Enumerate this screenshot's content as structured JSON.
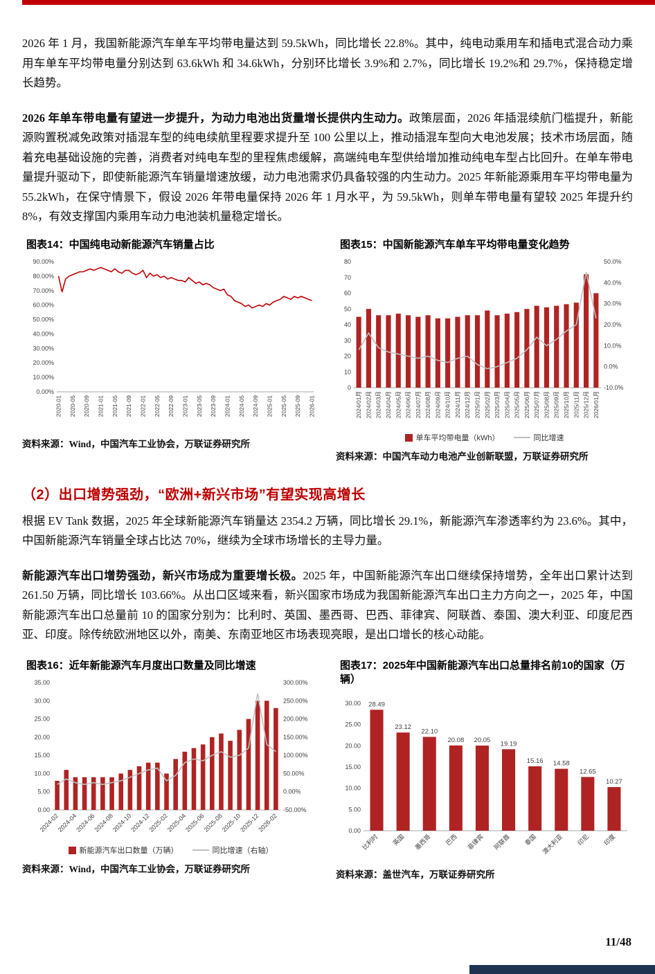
{
  "page": {
    "number": "11/48"
  },
  "colors": {
    "accent_red": "#c00000",
    "bar_red": "#b02323",
    "line_red": "#c00000",
    "line_gray": "#bfbfbf",
    "footer_navy": "#1d3350"
  },
  "paragraphs": {
    "p1": "2026 年 1 月，我国新能源汽车单车平均带电量达到 59.5kWh，同比增长 22.8%。其中，纯电动乘用车和插电式混合动力乘用车单车平均带电量分别达到 63.6kWh 和 34.6kWh，分别环比增长 3.9%和 2.7%，同比增长 19.2%和 29.7%，保持稳定增长趋势。",
    "p2_bold": "2026 年单车带电量有望进一步提升，为动力电池出货量增长提供内生动力。",
    "p2_rest": "政策层面，2026 年插混续航门槛提升，新能源购置税减免政策对插混车型的纯电续航里程要求提升至 100 公里以上，推动插混车型向大电池发展；技术市场层面，随着充电基础设施的完善，消费者对纯电车型的里程焦虑缓解，高端纯电车型供给增加推动纯电车型占比回升。在单车带电量提升驱动下，即使新能源汽车销量增速放缓，动力电池需求仍具备较强的内生动力。2025 年新能源乘用车平均带电量为 55.2kWh，在保守情景下，假设 2026 年带电量保持 2026 年 1 月水平，为 59.5kWh，则单车带电量有望较 2025 年提升约 8%，有效支撑国内乘用车动力电池装机量稳定增长。",
    "section2_heading": "（2）出口增势强劲，“欧洲+新兴市场”有望实现高增长",
    "p3": "根据 EV Tank 数据，2025 年全球新能源汽车销量达 2354.2 万辆，同比增长 29.1%，新能源汽车渗透率约为 23.6%。其中，中国新能源汽车销量全球占比达 70%，继续为全球市场增长的主导力量。",
    "p4_bold": "新能源汽车出口增势强劲，新兴市场成为重要增长极。",
    "p4_rest": "2025 年，中国新能源汽车出口继续保持增势，全年出口累计达到 261.50 万辆，同比增长 103.66%。从出口区域来看，新兴国家市场成为我国新能源汽车出口主力方向之一，2025 年，中国新能源汽车出口总量前 10 的国家分别为：比利时、英国、墨西哥、巴西、菲律宾、阿联酋、泰国、澳大利亚、印度尼西亚、印度。除传统欧洲地区以外，南美、东南亚地区市场表现亮眼，是出口增长的核心动能。"
  },
  "figures": {
    "fig14": {
      "title": "图表14：中国纯电动新能源汽车销量占比",
      "source": "资料来源：Wind，中国汽车工业协会，万联证券研究所"
    },
    "fig15": {
      "title": "图表15：中国新能源汽车单车平均带电量变化趋势",
      "source": "资料来源：中国汽车动力电池产业创新联盟，万联证券研究所"
    },
    "fig16": {
      "title": "图表16：近年新能源汽车月度出口数量及同比增速",
      "source": "资料来源：Wind，中国汽车工业协会，万联证券研究所"
    },
    "fig17": {
      "title": "图表17：2025年中国新能源汽车出口总量排名前10的国家（万辆）",
      "source": "资料来源：盖世汽车，万联证券研究所"
    }
  },
  "chart_data": [
    {
      "id": "fig14",
      "type": "line",
      "title": "中国纯电动新能源汽车销量占比",
      "n_points": 73,
      "tick_every": 4,
      "tick_labels": [
        "2020-01",
        "2020-05",
        "2020-09",
        "2021-01",
        "2021-05",
        "2021-09",
        "2022-01",
        "2022-05",
        "2022-09",
        "2023-01",
        "2023-05",
        "2023-09",
        "2024-01",
        "2024-05",
        "2024-09",
        "2025-01",
        "2025-05",
        "2025-09",
        "2026-01"
      ],
      "values": [
        80,
        69,
        78,
        80,
        81,
        82,
        83,
        83,
        84,
        85,
        84,
        85,
        86,
        85,
        84,
        83,
        85,
        83,
        82,
        84,
        84,
        82,
        81,
        82,
        84,
        79,
        82,
        80,
        81,
        79,
        80,
        78,
        79,
        78,
        77,
        77,
        76,
        79,
        77,
        75,
        76,
        74,
        75,
        74,
        72,
        71,
        70,
        71,
        67,
        66,
        63,
        62,
        61,
        59,
        60,
        58,
        59,
        60,
        59,
        61,
        60,
        62,
        63,
        64,
        66,
        65,
        64,
        66,
        65,
        66,
        65,
        64,
        63
      ],
      "ylim": [
        0,
        90
      ],
      "yticks": [
        "0.00%",
        "10.00%",
        "20.00%",
        "30.00%",
        "40.00%",
        "50.00%",
        "60.00%",
        "70.00%",
        "80.00%",
        "90.00%"
      ],
      "label_rotation": 90
    },
    {
      "id": "fig15",
      "type": "bar+line",
      "title": "中国新能源汽车单车平均带电量变化趋势",
      "categories": [
        "2024/01月",
        "2024/02月",
        "2024/03月",
        "2024/04月",
        "2024/05月",
        "2024/06月",
        "2024/07月",
        "2024/08月",
        "2024/09月",
        "2024/10月",
        "2024/11月",
        "2024/12月",
        "2025/01月",
        "2025/02月",
        "2025/03月",
        "2025/04月",
        "2025/05月",
        "2025/06月",
        "2025/07月",
        "2025/08月",
        "2025/09月",
        "2025/10月",
        "2025/11月",
        "2025/12月",
        "2026/01月"
      ],
      "tick_every": 1,
      "series": [
        {
          "name": "单车平均带电量（kWh）",
          "type": "bar",
          "axis": "left",
          "values": [
            45,
            50,
            46,
            46,
            47,
            46,
            45,
            46,
            44,
            44,
            45,
            46,
            46,
            49,
            46,
            47,
            48,
            50,
            52,
            51,
            52,
            53,
            54,
            72,
            60
          ]
        },
        {
          "name": "同比增速",
          "type": "line",
          "axis": "right",
          "values": [
            8,
            16,
            9,
            7,
            6,
            5,
            4,
            5,
            3,
            2,
            4,
            5,
            1,
            -1,
            0,
            2,
            4,
            8,
            14,
            10,
            13,
            17,
            20,
            45,
            23
          ]
        }
      ],
      "ylim_left": [
        0,
        80
      ],
      "yticks_left": [
        "0",
        "10",
        "20",
        "30",
        "40",
        "50",
        "60",
        "70",
        "80"
      ],
      "ylim_right": [
        -10,
        50
      ],
      "yticks_right": [
        "-10.0%",
        "0.0%",
        "10.0%",
        "20.0%",
        "30.0%",
        "40.0%",
        "50.0%"
      ],
      "label_rotation": 90,
      "legend": [
        {
          "type": "bar",
          "label": "单车平均带电量（kWh）",
          "color": "#b02323"
        },
        {
          "type": "line",
          "label": "同比增速",
          "color": "#bfbfbf"
        }
      ]
    },
    {
      "id": "fig16",
      "type": "bar+line",
      "title": "近年新能源汽车月度出口数量及同比增速",
      "categories": [
        "2024-02",
        "2024-03",
        "2024-04",
        "2024-05",
        "2024-06",
        "2024-07",
        "2024-08",
        "2024-09",
        "2024-10",
        "2024-11",
        "2024-12",
        "2025-01",
        "2025-02",
        "2025-03",
        "2025-04",
        "2025-05",
        "2025-06",
        "2025-07",
        "2025-08",
        "2025-09",
        "2025-10",
        "2025-11",
        "2025-12",
        "2026-01",
        "2026-02"
      ],
      "tick_every": 2,
      "tick_labels": [
        "2024-02",
        "2024-04",
        "2024-06",
        "2024-08",
        "2024-10",
        "2024-12",
        "2025-02",
        "2025-04",
        "2025-06",
        "2025-08",
        "2025-10",
        "2025-12",
        "2026-02"
      ],
      "series": [
        {
          "name": "新能源汽车出口数量（万辆）",
          "type": "bar",
          "axis": "left",
          "values": [
            8,
            11,
            9,
            9,
            9,
            9,
            9,
            10,
            11,
            12,
            13,
            13,
            10,
            14,
            16,
            17,
            18,
            20,
            21,
            19,
            22,
            25,
            30,
            30,
            28
          ]
        },
        {
          "name": "同比增速（右轴）",
          "type": "line",
          "axis": "right",
          "values": [
            20,
            35,
            25,
            20,
            25,
            20,
            25,
            30,
            40,
            50,
            60,
            65,
            30,
            45,
            80,
            90,
            85,
            100,
            110,
            95,
            100,
            120,
            270,
            130,
            110
          ]
        }
      ],
      "ylim_left": [
        0,
        35
      ],
      "yticks_left": [
        "0.00",
        "5.00",
        "10.00",
        "15.00",
        "20.00",
        "25.00",
        "30.00",
        "35.00"
      ],
      "ylim_right": [
        -50,
        300
      ],
      "yticks_right": [
        "-50.00%",
        "0.00%",
        "50.00%",
        "100.00%",
        "150.00%",
        "200.00%",
        "250.00%",
        "300.00%"
      ],
      "label_rotation": 45,
      "legend": [
        {
          "type": "bar",
          "label": "新能源汽车出口数量（万辆）",
          "color": "#b02323"
        },
        {
          "type": "line",
          "label": "同比增速（右轴）",
          "color": "#bfbfbf"
        }
      ]
    },
    {
      "id": "fig17",
      "type": "bar",
      "title": "2025年中国新能源汽车出口总量排名前10的国家（万辆）",
      "categories": [
        "比利时",
        "英国",
        "墨西哥",
        "巴西",
        "菲律宾",
        "阿联酋",
        "泰国",
        "澳大利亚",
        "印尼",
        "印度"
      ],
      "values": [
        28.49,
        23.12,
        22.1,
        20.08,
        20.05,
        19.19,
        15.16,
        14.58,
        12.65,
        10.27
      ],
      "ylim": [
        0,
        30
      ],
      "yticks": [
        "0.00",
        "5.00",
        "10.00",
        "15.00",
        "20.00",
        "25.00",
        "30.00"
      ],
      "label_rotation": 45,
      "data_labels": true
    }
  ]
}
